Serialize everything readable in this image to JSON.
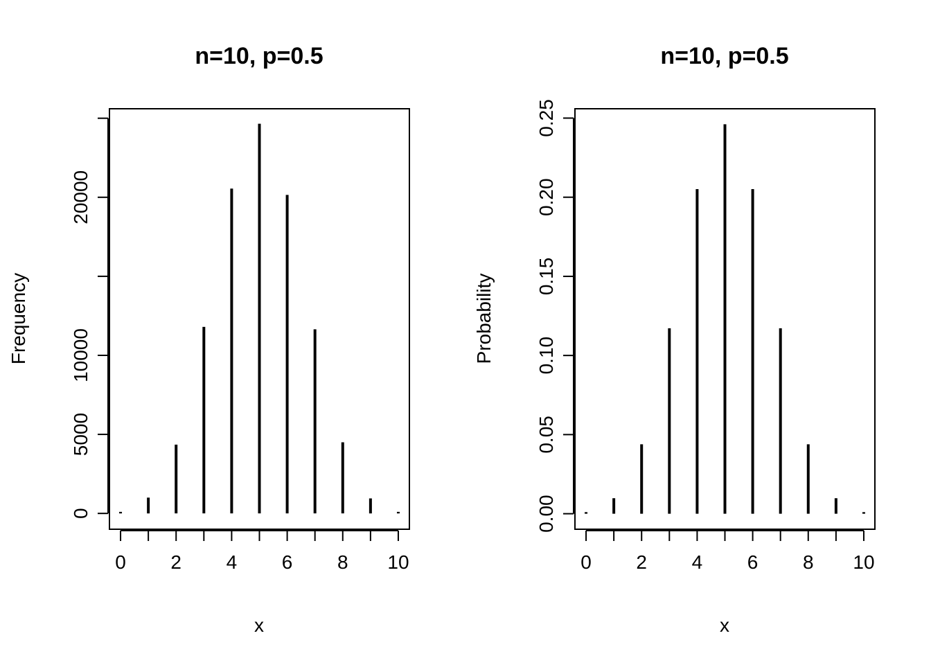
{
  "chart_data": [
    {
      "type": "bar",
      "title": "n=10, p=0.5",
      "xlabel": "x",
      "ylabel": "Frequency",
      "x": [
        0,
        1,
        2,
        3,
        4,
        5,
        6,
        7,
        8,
        9,
        10
      ],
      "values": [
        100,
        1000,
        4350,
        11800,
        20550,
        24650,
        20150,
        11650,
        4500,
        950,
        100
      ],
      "xticks": [
        "0",
        "2",
        "4",
        "6",
        "8",
        "10"
      ],
      "yticks": [
        "0",
        "5000",
        "10000",
        "20000"
      ],
      "xlim": [
        -0.4,
        10.4
      ],
      "ylim": [
        -1000,
        25600
      ],
      "grid": false,
      "color": "#000000"
    },
    {
      "type": "bar",
      "title": "n=10, p=0.5",
      "xlabel": "x",
      "ylabel": "Probability",
      "x": [
        0,
        1,
        2,
        3,
        4,
        5,
        6,
        7,
        8,
        9,
        10
      ],
      "values": [
        0.001,
        0.0098,
        0.0439,
        0.1172,
        0.2051,
        0.2461,
        0.2051,
        0.1172,
        0.0439,
        0.0098,
        0.001
      ],
      "xticks": [
        "0",
        "2",
        "4",
        "6",
        "8",
        "10"
      ],
      "yticks": [
        "0.00",
        "0.05",
        "0.10",
        "0.15",
        "0.20",
        "0.25"
      ],
      "xlim": [
        -0.4,
        10.4
      ],
      "ylim": [
        -0.0098,
        0.2559
      ],
      "grid": false,
      "color": "#000000"
    }
  ]
}
